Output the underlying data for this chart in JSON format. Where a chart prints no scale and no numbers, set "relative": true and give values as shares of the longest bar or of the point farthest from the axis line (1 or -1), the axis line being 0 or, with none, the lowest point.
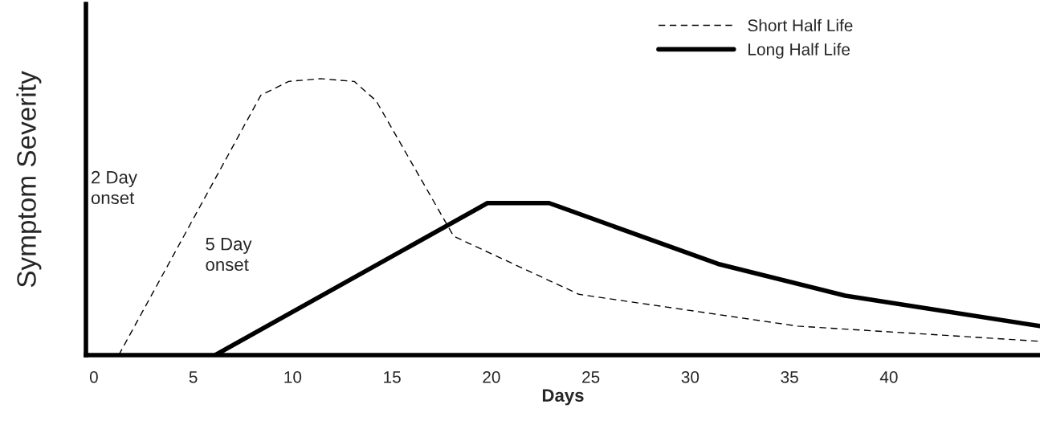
{
  "chart_data": {
    "type": "line",
    "relative": true,
    "xlabel": "Days",
    "ylabel": "Symptom Severity",
    "xlim": [
      -0.4,
      47.6
    ],
    "xticks": [
      0,
      5,
      10,
      15,
      20,
      25,
      30,
      35,
      40
    ],
    "series": [
      {
        "name": "Short Half Life",
        "color": "#000000",
        "line_style": "dashed",
        "x": [
          1.25,
          8.4,
          9.8,
          11.4,
          13.1,
          14.2,
          18.1,
          24.4,
          35.4,
          47.6
        ],
        "values": [
          0,
          0.94,
          0.99,
          1.0,
          0.99,
          0.92,
          0.43,
          0.22,
          0.105,
          0.05
        ]
      },
      {
        "name": "Long Half Life",
        "color": "#000000",
        "line_style": "solid",
        "x": [
          6.1,
          19.8,
          22.9,
          31.4,
          37.8,
          47.6
        ],
        "values": [
          0,
          0.55,
          0.55,
          0.33,
          0.215,
          0.105
        ]
      }
    ],
    "annotations": [
      "2 Day\nonset",
      "5 Day\nonset"
    ],
    "legend": "top right"
  }
}
